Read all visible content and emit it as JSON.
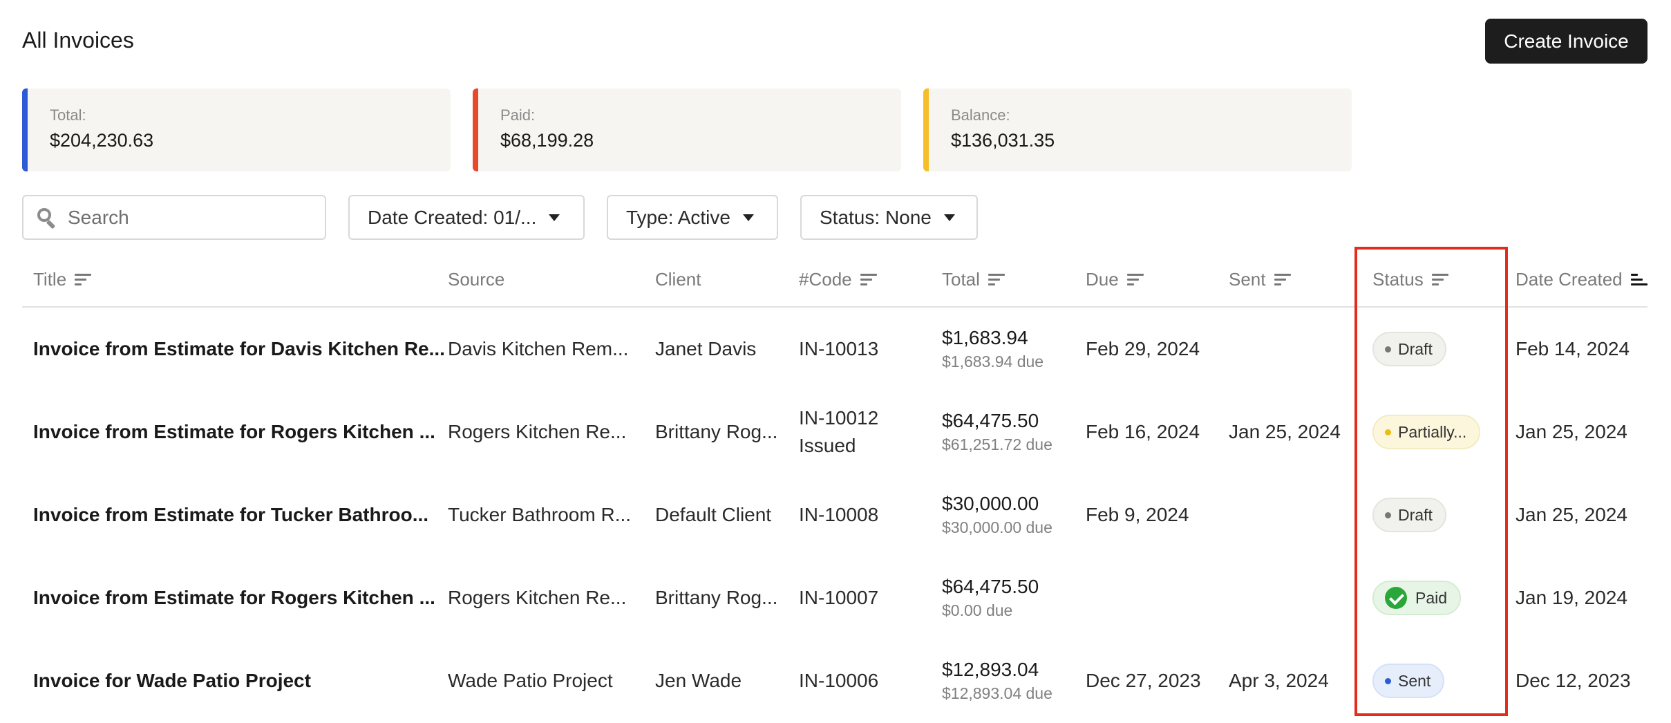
{
  "header": {
    "title": "All Invoices",
    "create_label": "Create Invoice"
  },
  "summary": [
    {
      "label": "Total:",
      "value": "$204,230.63",
      "color": "#2c5bd5"
    },
    {
      "label": "Paid:",
      "value": "$68,199.28",
      "color": "#e8492a"
    },
    {
      "label": "Balance:",
      "value": "$136,031.35",
      "color": "#f5bf2a"
    }
  ],
  "filters": {
    "search_placeholder": "Search",
    "date_created": "Date Created: 01/...",
    "type": "Type: Active",
    "status": "Status: None"
  },
  "columns": {
    "title": "Title",
    "source": "Source",
    "client": "Client",
    "code": "#Code",
    "total": "Total",
    "due": "Due",
    "sent": "Sent",
    "status": "Status",
    "date_created": "Date Created"
  },
  "rows": [
    {
      "title": "Invoice from Estimate for Davis Kitchen Re...",
      "source": "Davis Kitchen Rem...",
      "client": "Janet Davis",
      "code": "IN-10013",
      "code_sub": "",
      "total": "$1,683.94",
      "total_due": "$1,683.94 due",
      "due": "Feb 29, 2024",
      "sent": "",
      "status": "Draft",
      "date_created": "Feb 14, 2024"
    },
    {
      "title": "Invoice from Estimate for Rogers Kitchen ...",
      "source": "Rogers Kitchen Re...",
      "client": "Brittany Rog...",
      "code": "IN-10012",
      "code_sub": "Issued",
      "total": "$64,475.50",
      "total_due": "$61,251.72 due",
      "due": "Feb 16, 2024",
      "sent": "Jan 25, 2024",
      "status": "Partially...",
      "date_created": "Jan 25, 2024"
    },
    {
      "title": "Invoice from Estimate for Tucker Bathroo...",
      "source": "Tucker Bathroom R...",
      "client": "Default Client",
      "code": "IN-10008",
      "code_sub": "",
      "total": "$30,000.00",
      "total_due": "$30,000.00 due",
      "due": "Feb 9, 2024",
      "sent": "",
      "status": "Draft",
      "date_created": "Jan 25, 2024"
    },
    {
      "title": "Invoice from Estimate for Rogers Kitchen ...",
      "source": "Rogers Kitchen Re...",
      "client": "Brittany Rog...",
      "code": "IN-10007",
      "code_sub": "",
      "total": "$64,475.50",
      "total_due": "$0.00 due",
      "due": "",
      "sent": "",
      "status": "Paid",
      "date_created": "Jan 19, 2024"
    },
    {
      "title": "Invoice for Wade Patio Project",
      "source": "Wade Patio Project",
      "client": "Jen Wade",
      "code": "IN-10006",
      "code_sub": "",
      "total": "$12,893.04",
      "total_due": "$12,893.04 due",
      "due": "Dec 27, 2023",
      "sent": "Apr 3, 2024",
      "status": "Sent",
      "date_created": "Dec 12, 2023"
    }
  ]
}
